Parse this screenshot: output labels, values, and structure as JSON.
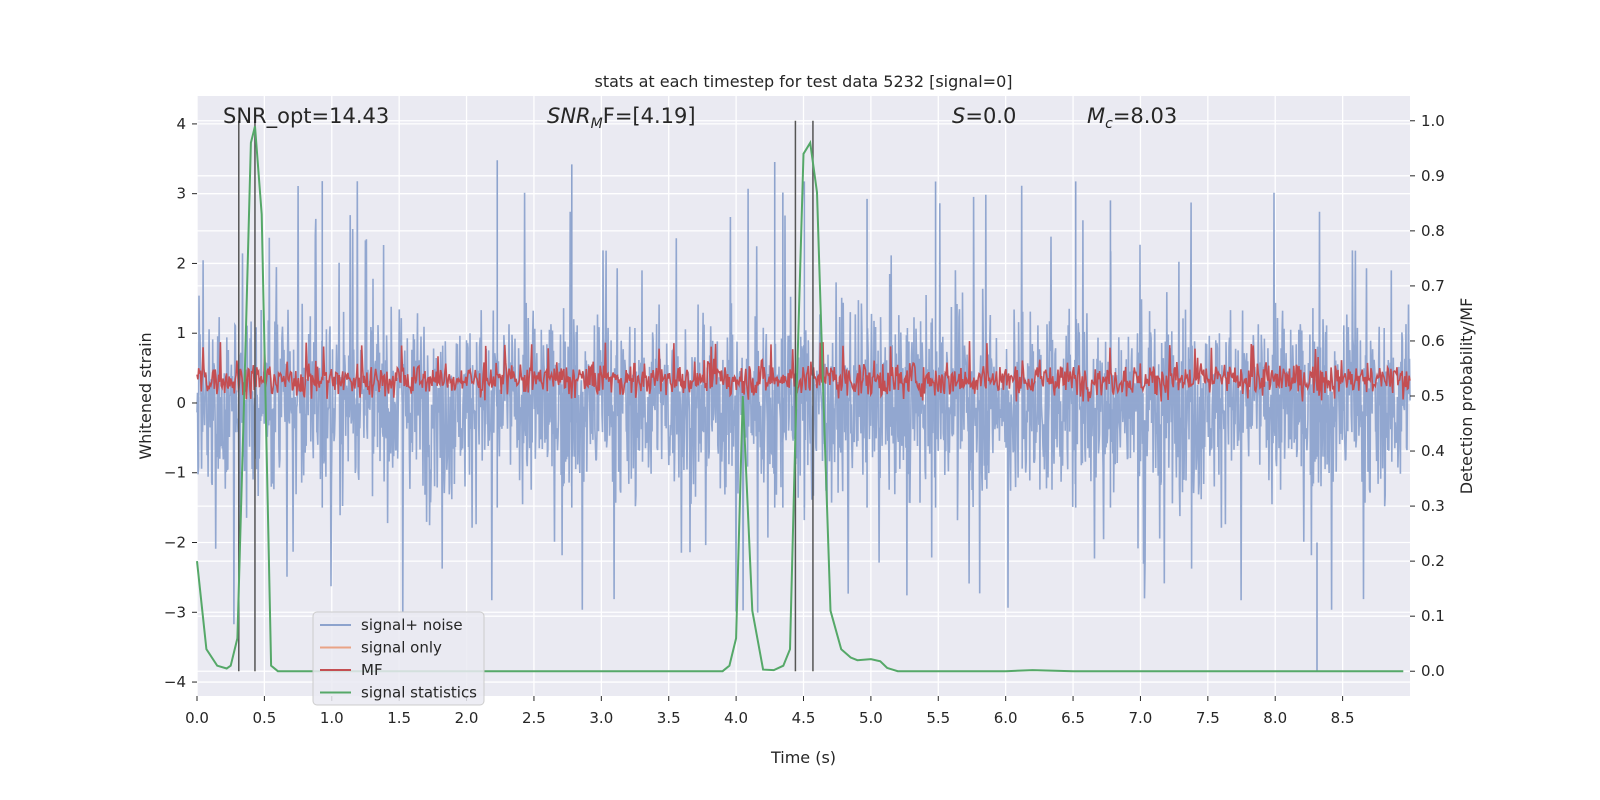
{
  "chart_data": {
    "type": "line",
    "title": "stats at each timestep for test data 5232 [signal=0]",
    "xlabel": "Time (s)",
    "ylabel_left": "Whitened strain",
    "ylabel_right": "Detection probability/MF",
    "xlim": [
      0,
      9.0
    ],
    "ylim_left": [
      -4.2,
      4.4
    ],
    "ylim_right": [
      -0.045,
      1.045
    ],
    "x_ticks": [
      0.0,
      0.5,
      1.0,
      1.5,
      2.0,
      2.5,
      3.0,
      3.5,
      4.0,
      4.5,
      5.0,
      5.5,
      6.0,
      6.5,
      7.0,
      7.5,
      8.0,
      8.5
    ],
    "x_tick_labels": [
      "0.0",
      "0.5",
      "1.0",
      "1.5",
      "2.0",
      "2.5",
      "3.0",
      "3.5",
      "4.0",
      "4.5",
      "5.0",
      "5.5",
      "6.0",
      "6.5",
      "7.0",
      "7.5",
      "8.0",
      "8.5"
    ],
    "y_left_ticks": [
      -4,
      -3,
      -2,
      -1,
      0,
      1,
      2,
      3,
      4
    ],
    "y_left_tick_labels": [
      "−4",
      "−3",
      "−2",
      "−1",
      "0",
      "1",
      "2",
      "3",
      "4"
    ],
    "y_right_ticks": [
      0.0,
      0.1,
      0.2,
      0.3,
      0.4,
      0.5,
      0.6,
      0.7,
      0.8,
      0.9,
      1.0
    ],
    "y_right_tick_labels": [
      "0.0",
      "0.1",
      "0.2",
      "0.3",
      "0.4",
      "0.5",
      "0.6",
      "0.7",
      "0.8",
      "0.9",
      "1.0"
    ],
    "annotations": {
      "snr_opt": "SNR_opt=14.43",
      "snr_mf": "SNR",
      "snr_mf_sub": "M",
      "snr_mf_rest": "F=[4.19]",
      "s_label": "S",
      "s_value": "=0.0",
      "mc_label": "M",
      "mc_sub": "c",
      "mc_value": "=8.03"
    },
    "vertical_markers_s": [
      0.31,
      0.43,
      4.44,
      4.57
    ],
    "series": [
      {
        "name": "signal+ noise",
        "axis": "left",
        "color": "#8da3cd",
        "kind": "noise",
        "center": 0.0,
        "typical_amplitude": 1.5,
        "max_peak": 3.5,
        "min_trough": -3.85
      },
      {
        "name": "signal only",
        "axis": "left",
        "color": "#e9a385",
        "kind": "empty",
        "values": []
      },
      {
        "name": "MF",
        "axis": "right",
        "color": "#c44e52",
        "kind": "noise",
        "center": 0.53,
        "range": [
          0.49,
          0.6
        ]
      },
      {
        "name": "signal statistics",
        "axis": "right",
        "color": "#55a868",
        "kind": "line",
        "x": [
          0.0,
          0.07,
          0.15,
          0.22,
          0.25,
          0.3,
          0.35,
          0.4,
          0.43,
          0.48,
          0.55,
          0.6,
          0.65,
          0.8,
          1.0,
          2.0,
          3.0,
          3.9,
          3.95,
          4.0,
          4.05,
          4.12,
          4.2,
          4.28,
          4.35,
          4.4,
          4.44,
          4.5,
          4.55,
          4.6,
          4.65,
          4.7,
          4.78,
          4.85,
          4.9,
          5.0,
          5.07,
          5.12,
          5.2,
          5.5,
          6.0,
          6.2,
          6.5,
          7.0,
          8.0,
          8.5,
          8.95
        ],
        "y": [
          0.2,
          0.04,
          0.01,
          0.005,
          0.01,
          0.06,
          0.5,
          0.96,
          0.99,
          0.83,
          0.01,
          0.0,
          0.0,
          0.0,
          0.0,
          0.0,
          0.0,
          0.0,
          0.01,
          0.06,
          0.5,
          0.11,
          0.003,
          0.002,
          0.01,
          0.04,
          0.43,
          0.94,
          0.96,
          0.87,
          0.48,
          0.11,
          0.04,
          0.025,
          0.02,
          0.022,
          0.018,
          0.006,
          0.0,
          0.0,
          0.0,
          0.002,
          0.0,
          0.0,
          0.0,
          0.0,
          0.0
        ]
      }
    ],
    "legend_position": "lower-left"
  }
}
